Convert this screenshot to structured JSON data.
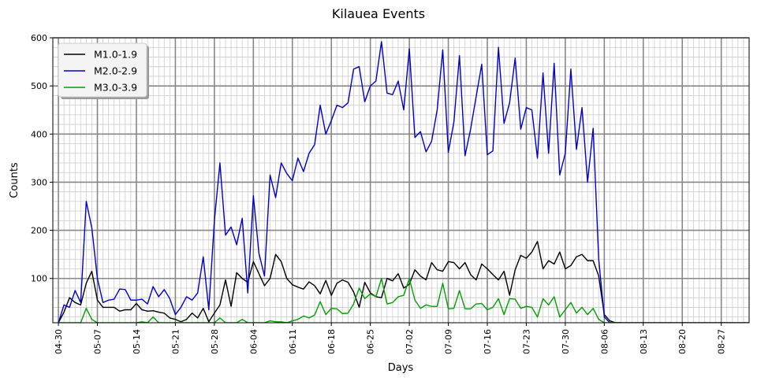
{
  "chart_data": {
    "type": "line",
    "title": "Kilauea Events",
    "xlabel": "Days",
    "ylabel": "Counts",
    "x_start": "2018-04-29",
    "x_end": "2018-09-01",
    "ylim": [
      8,
      600
    ],
    "yticks": [
      100,
      200,
      300,
      400,
      500,
      600
    ],
    "xticks": [
      "04-30",
      "05-07",
      "05-14",
      "05-21",
      "05-28",
      "06-04",
      "06-11",
      "06-18",
      "06-25",
      "07-02",
      "07-09",
      "07-16",
      "07-23",
      "07-30",
      "08-06",
      "08-13",
      "08-20",
      "08-27"
    ],
    "xtick_dates": [
      "2018-04-30",
      "2018-05-07",
      "2018-05-14",
      "2018-05-21",
      "2018-05-28",
      "2018-06-04",
      "2018-06-11",
      "2018-06-18",
      "2018-06-25",
      "2018-07-02",
      "2018-07-09",
      "2018-07-16",
      "2018-07-23",
      "2018-07-30",
      "2018-08-06",
      "2018-08-13",
      "2018-08-20",
      "2018-08-27"
    ],
    "grid": true,
    "legend_position": "top-left",
    "series": [
      {
        "name": "M1.0-1.9",
        "color": "#000000",
        "start_date": "2018-04-30",
        "values": [
          5,
          30,
          60,
          50,
          45,
          90,
          115,
          55,
          40,
          40,
          40,
          32,
          35,
          35,
          48,
          35,
          32,
          33,
          30,
          28,
          18,
          15,
          10,
          15,
          28,
          18,
          38,
          10,
          28,
          45,
          97,
          42,
          112,
          100,
          92,
          135,
          110,
          85,
          100,
          150,
          135,
          100,
          87,
          82,
          78,
          93,
          85,
          68,
          96,
          65,
          90,
          97,
          92,
          72,
          40,
          92,
          70,
          62,
          60,
          100,
          95,
          110,
          80,
          88,
          118,
          105,
          97,
          133,
          118,
          115,
          135,
          133,
          120,
          133,
          108,
          97,
          130,
          120,
          108,
          97,
          115,
          65,
          118,
          148,
          142,
          155,
          177,
          120,
          137,
          130,
          155,
          120,
          127,
          145,
          150,
          137,
          137,
          105,
          25,
          12,
          5,
          3,
          2,
          2,
          2,
          2,
          2,
          2,
          3,
          2,
          2,
          2,
          2,
          2,
          3,
          2,
          2,
          2,
          2,
          2,
          2,
          2,
          2,
          2,
          2,
          2,
          2
        ]
      },
      {
        "name": "M2.0-2.9",
        "color": "#0000cc",
        "start_date": "2018-04-30",
        "values": [
          5,
          45,
          40,
          75,
          50,
          260,
          205,
          100,
          50,
          55,
          57,
          78,
          77,
          55,
          55,
          57,
          47,
          83,
          62,
          77,
          58,
          25,
          40,
          62,
          55,
          70,
          145,
          35,
          220,
          340,
          190,
          207,
          170,
          225,
          70,
          272,
          152,
          105,
          315,
          268,
          340,
          318,
          303,
          350,
          322,
          360,
          378,
          460,
          400,
          428,
          460,
          455,
          465,
          535,
          540,
          467,
          500,
          510,
          592,
          485,
          482,
          510,
          450,
          577,
          393,
          405,
          363,
          385,
          450,
          575,
          362,
          425,
          563,
          355,
          410,
          478,
          545,
          357,
          365,
          580,
          422,
          465,
          558,
          410,
          455,
          450,
          350,
          527,
          360,
          547,
          315,
          360,
          535,
          368,
          455,
          300,
          412,
          140,
          20,
          2,
          2,
          2
        ]
      },
      {
        "name": "M3.0-3.9",
        "color": "#00a000",
        "start_date": "2018-04-30",
        "values": [
          2,
          2,
          2,
          2,
          2,
          38,
          15,
          5,
          2,
          2,
          2,
          2,
          2,
          2,
          2,
          10,
          8,
          20,
          5,
          2,
          2,
          2,
          2,
          2,
          2,
          2,
          2,
          2,
          2,
          18,
          2,
          2,
          2,
          15,
          2,
          2,
          2,
          2,
          12,
          10,
          10,
          8,
          12,
          15,
          22,
          18,
          24,
          52,
          25,
          38,
          37,
          27,
          28,
          47,
          80,
          58,
          68,
          62,
          100,
          47,
          50,
          62,
          65,
          100,
          55,
          38,
          45,
          42,
          42,
          90,
          37,
          38,
          75,
          37,
          37,
          47,
          48,
          35,
          40,
          58,
          25,
          58,
          57,
          38,
          42,
          40,
          20,
          58,
          45,
          62,
          20,
          35,
          50,
          28,
          40,
          25,
          38,
          15,
          8,
          3,
          2,
          2
        ]
      }
    ]
  }
}
